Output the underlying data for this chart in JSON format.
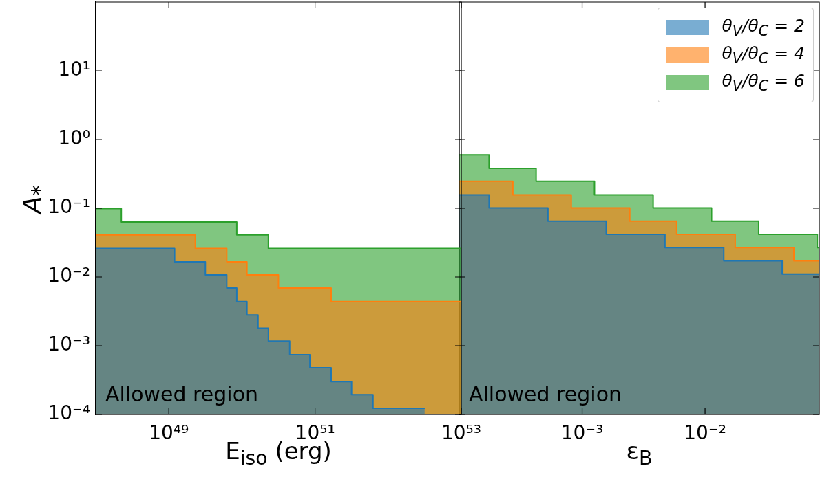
{
  "chart_data": [
    {
      "type": "area",
      "xlabel": "E$_{iso}$ (erg)",
      "ylabel": "A$_{*}$",
      "log": "xy",
      "grid": false,
      "legend": false,
      "xlim": [
        1e+48,
        1e+53
      ],
      "ylim": [
        0.0001,
        100
      ],
      "xticks": [
        {
          "value": 1e+49,
          "label": "10⁴⁹"
        },
        {
          "value": 1e+51,
          "label": "10⁵¹"
        },
        {
          "value": 1e+53,
          "label": "10⁵³"
        }
      ],
      "yticks": [
        {
          "value": 0.0001,
          "label": "10⁻⁴"
        },
        {
          "value": 0.001,
          "label": "10⁻³"
        },
        {
          "value": 0.01,
          "label": "10⁻²"
        },
        {
          "value": 0.1,
          "label": "10⁻¹"
        },
        {
          "value": 1,
          "label": "10⁰"
        },
        {
          "value": 10,
          "label": "10¹"
        }
      ],
      "annotations": [
        "Allowed region"
      ],
      "series": [
        {
          "color": "#1f77b4",
          "x": [
            1e+48,
            1.2e+49,
            1.2e+49,
            3.16e+49,
            3.16e+49,
            6.2e+49,
            6.2e+49,
            8.5e+49,
            8.5e+49,
            1.17e+50,
            1.17e+50,
            1.66e+50,
            1.66e+50,
            2.3e+50,
            2.3e+50,
            4.5e+50,
            4.5e+50,
            8.5e+50,
            8.5e+50,
            1.66e+51,
            1.66e+51,
            3.16e+51,
            3.16e+51,
            6.2e+51,
            6.2e+51,
            3.16e+52
          ],
          "values": [
            0.026,
            0.026,
            0.0166,
            0.0166,
            0.0107,
            0.0107,
            0.0069,
            0.0069,
            0.0044,
            0.0044,
            0.0028,
            0.0028,
            0.0018,
            0.0018,
            0.00117,
            0.00117,
            0.00074,
            0.00074,
            0.00048,
            0.00048,
            0.0003,
            0.0003,
            0.000194,
            0.000194,
            0.000123,
            0.000123
          ]
        },
        {
          "color": "#ff7f0e",
          "x": [
            1e+48,
            2.3e+49,
            2.3e+49,
            6.2e+49,
            6.2e+49,
            1.17e+50,
            1.17e+50,
            3.16e+50,
            3.16e+50,
            1.66e+51,
            1.66e+51,
            1e+53
          ],
          "values": [
            0.041,
            0.041,
            0.026,
            0.026,
            0.0166,
            0.0166,
            0.0107,
            0.0107,
            0.0069,
            0.0069,
            0.0044,
            0.0044
          ]
        },
        {
          "color": "#2ca02c",
          "x": [
            1e+48,
            2.24e+48,
            2.24e+48,
            8.5e+49,
            8.5e+49,
            2.3e+50,
            2.3e+50,
            1e+53
          ],
          "values": [
            0.099,
            0.099,
            0.063,
            0.063,
            0.041,
            0.041,
            0.026,
            0.026
          ]
        }
      ]
    },
    {
      "type": "area",
      "xlabel": "ε$_{B}$",
      "log": "xy",
      "grid": false,
      "legend": "top right",
      "tick_labels": "x",
      "xlim": [
        0.0001,
        0.085
      ],
      "ylim": [
        0.0001,
        100
      ],
      "xticks": [
        {
          "value": 0.001,
          "label": "10⁻³"
        },
        {
          "value": 0.01,
          "label": "10⁻²"
        }
      ],
      "yticks": [
        {
          "value": 0.0001,
          "label": null
        },
        {
          "value": 0.001,
          "label": null
        },
        {
          "value": 0.01,
          "label": null
        },
        {
          "value": 0.1,
          "label": null
        },
        {
          "value": 1,
          "label": null
        },
        {
          "value": 10,
          "label": null
        }
      ],
      "annotations": [
        "Allowed region"
      ],
      "series": [
        {
          "name": "θ$_{V}$/θ$_{C}$ = 2",
          "color": "#1f77b4",
          "x": [
            0.0001,
            0.000175,
            0.000175,
            0.000527,
            0.000527,
            0.00157,
            0.00157,
            0.00472,
            0.00472,
            0.0142,
            0.0142,
            0.0424,
            0.0424,
            0.085
          ],
          "values": [
            0.157,
            0.157,
            0.101,
            0.101,
            0.065,
            0.065,
            0.0417,
            0.0417,
            0.0268,
            0.0268,
            0.0172,
            0.0172,
            0.011,
            0.011
          ]
        },
        {
          "name": "θ$_{V}$/θ$_{C}$ = 4",
          "color": "#ff7f0e",
          "x": [
            0.0001,
            0.000273,
            0.000273,
            0.000815,
            0.000815,
            0.00244,
            0.00244,
            0.00587,
            0.00587,
            0.0176,
            0.0176,
            0.0528,
            0.0528,
            0.085
          ],
          "values": [
            0.247,
            0.247,
            0.157,
            0.157,
            0.101,
            0.101,
            0.065,
            0.065,
            0.0417,
            0.0417,
            0.0268,
            0.0268,
            0.0172,
            0.0172
          ]
        },
        {
          "name": "θ$_{V}$/θ$_{C}$ = 6",
          "color": "#2ca02c",
          "x": [
            0.0001,
            0.000175,
            0.000175,
            0.000422,
            0.000422,
            0.00126,
            0.00126,
            0.00378,
            0.00378,
            0.0113,
            0.0113,
            0.0273,
            0.0273,
            0.082,
            0.082,
            0.085
          ],
          "values": [
            0.6,
            0.6,
            0.381,
            0.381,
            0.247,
            0.247,
            0.157,
            0.157,
            0.101,
            0.101,
            0.065,
            0.065,
            0.0417,
            0.0417,
            0.0268,
            0.0268
          ]
        }
      ]
    }
  ]
}
